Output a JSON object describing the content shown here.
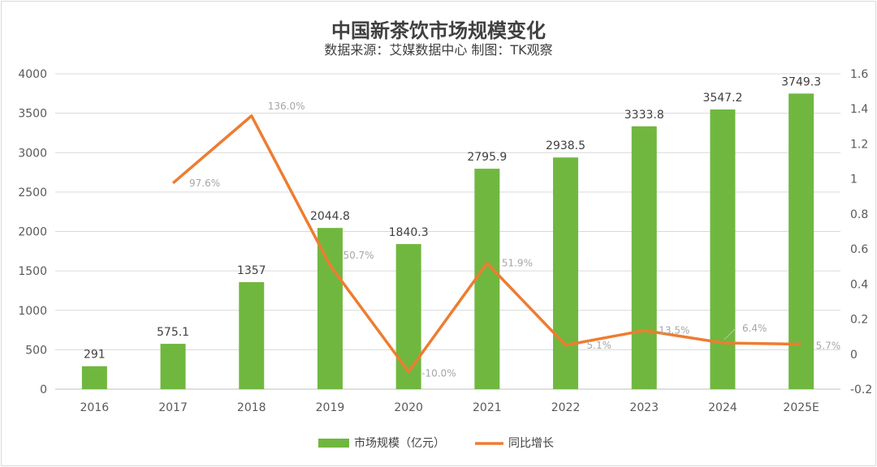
{
  "chart_data": {
    "type": "bar",
    "title": "中国新茶饮市场规模变化",
    "subtitle": "数据来源：艾媒数据中心 制图：TK观察",
    "categories": [
      "2016",
      "2017",
      "2018",
      "2019",
      "2020",
      "2021",
      "2022",
      "2023",
      "2024",
      "2025E"
    ],
    "series": [
      {
        "name": "市场规模（亿元）",
        "type": "bar",
        "axis": "left",
        "color": "#70b73f",
        "values": [
          291,
          575.1,
          1357,
          2044.8,
          1840.3,
          2795.9,
          2938.5,
          3333.8,
          3547.2,
          3749.3
        ],
        "labels": [
          "291",
          "575.1",
          "1357",
          "2044.8",
          "1840.3",
          "2795.9",
          "2938.5",
          "3333.8",
          "3547.2",
          "3749.3"
        ]
      },
      {
        "name": "同比增长",
        "type": "line",
        "axis": "right",
        "color": "#ed7d31",
        "values": [
          null,
          0.976,
          1.36,
          0.507,
          -0.1,
          0.519,
          0.051,
          0.135,
          0.064,
          0.057
        ],
        "labels": [
          "",
          "97.6%",
          "136.0%",
          "50.7%",
          "-10.0%",
          "51.9%",
          "5.1%",
          "13.5%",
          "6.4%",
          "5.7%"
        ]
      }
    ],
    "y_left": {
      "min": 0,
      "max": 4000,
      "ticks": [
        0,
        500,
        1000,
        1500,
        2000,
        2500,
        3000,
        3500,
        4000
      ]
    },
    "y_right": {
      "min": -0.2,
      "max": 1.6,
      "ticks": [
        "-0.2",
        "0",
        "0.2",
        "0.4",
        "0.6",
        "0.8",
        "1",
        "1.2",
        "1.4",
        "1.6"
      ]
    },
    "grid": true,
    "legend": "bottom"
  }
}
